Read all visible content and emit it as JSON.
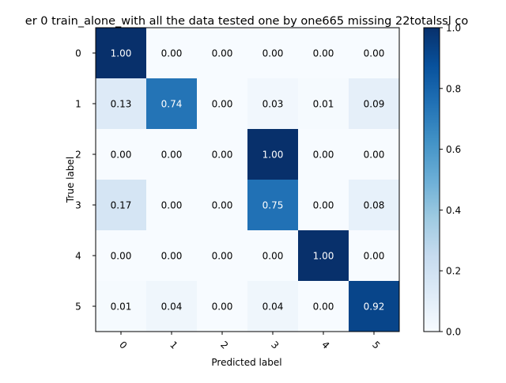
{
  "chart_data": {
    "type": "heatmap",
    "title": "er 0  train_alone_with all the data tested one by one665 missing 22totalssl co",
    "xlabel": "Predicted label",
    "ylabel": "True label",
    "x_categories": [
      "0",
      "1",
      "2",
      "3",
      "4",
      "5"
    ],
    "y_categories": [
      "0",
      "1",
      "2",
      "3",
      "4",
      "5"
    ],
    "values": [
      [
        1.0,
        0.0,
        0.0,
        0.0,
        0.0,
        0.0
      ],
      [
        0.13,
        0.74,
        0.0,
        0.03,
        0.01,
        0.09
      ],
      [
        0.0,
        0.0,
        0.0,
        1.0,
        0.0,
        0.0
      ],
      [
        0.17,
        0.0,
        0.0,
        0.75,
        0.0,
        0.08
      ],
      [
        0.0,
        0.0,
        0.0,
        0.0,
        1.0,
        0.0
      ],
      [
        0.01,
        0.04,
        0.0,
        0.04,
        0.0,
        0.92
      ]
    ],
    "colormap": "Blues",
    "colorbar": {
      "range": [
        0.0,
        1.0
      ],
      "ticks": [
        0.0,
        0.2,
        0.4,
        0.6,
        0.8,
        1.0
      ],
      "tick_labels": [
        "0.0",
        "0.2",
        "0.4",
        "0.6",
        "0.8",
        "1.0"
      ]
    },
    "x_tick_rotation": 45,
    "cell_text_colors": {
      "light": "#000000",
      "dark": "#ffffff"
    }
  }
}
